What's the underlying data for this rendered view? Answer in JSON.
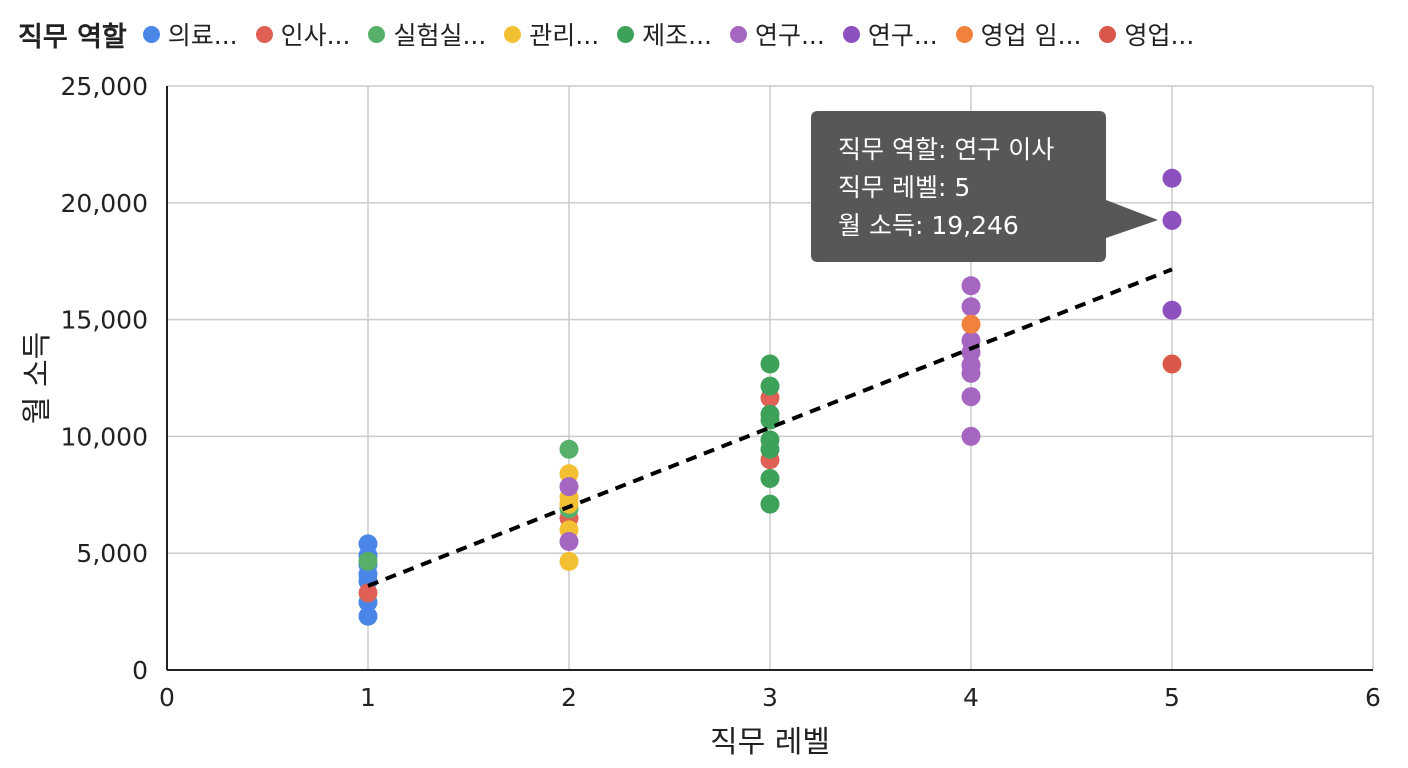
{
  "legend": {
    "title": "직무 역할",
    "items": [
      {
        "label": "의료...",
        "color": "#4a86e8"
      },
      {
        "label": "인사...",
        "color": "#e06055"
      },
      {
        "label": "실험실...",
        "color": "#57b06a"
      },
      {
        "label": "관리...",
        "color": "#f3bf33"
      },
      {
        "label": "제조...",
        "color": "#3ea15a"
      },
      {
        "label": "연구...",
        "color": "#a566c2"
      },
      {
        "label": "연구...",
        "color": "#8e4fbf"
      },
      {
        "label": "영업 임...",
        "color": "#f0823e"
      },
      {
        "label": "영업...",
        "color": "#d9574b"
      }
    ]
  },
  "tooltip": {
    "line1": "직무 역할: 연구 이사",
    "line2": "직무 레벨: 5",
    "line3": "월 소득: 19,246"
  },
  "chart_data": {
    "type": "scatter",
    "xlabel": "직무 레벨",
    "ylabel": "월 소득",
    "xlim": [
      0,
      6
    ],
    "ylim": [
      0,
      25000
    ],
    "x_ticks": [
      "0",
      "1",
      "2",
      "3",
      "4",
      "5",
      "6"
    ],
    "y_ticks": [
      "0",
      "5,000",
      "10,000",
      "15,000",
      "20,000",
      "25,000"
    ],
    "grid": true,
    "legend_position": "top",
    "trendline": {
      "style": "dashed",
      "color": "#000000",
      "from": [
        1,
        3600
      ],
      "to": [
        5,
        17150
      ]
    },
    "series": [
      {
        "name": "의료...",
        "color": "#4a86e8",
        "points": [
          [
            1,
            5400
          ],
          [
            1,
            4900
          ],
          [
            1,
            4500
          ],
          [
            1,
            4100
          ],
          [
            1,
            3800
          ],
          [
            1,
            2900
          ],
          [
            1,
            2300
          ]
        ]
      },
      {
        "name": "인사...",
        "color": "#e06055",
        "points": [
          [
            1,
            3300
          ],
          [
            2,
            6500
          ],
          [
            3,
            11650
          ],
          [
            3,
            9000
          ]
        ]
      },
      {
        "name": "실험실...",
        "color": "#57b06a",
        "points": [
          [
            1,
            4650
          ],
          [
            2,
            9450
          ],
          [
            2,
            6900
          ]
        ]
      },
      {
        "name": "관리...",
        "color": "#f3bf33",
        "points": [
          [
            2,
            8400
          ],
          [
            2,
            7400
          ],
          [
            2,
            7100
          ],
          [
            2,
            6000
          ],
          [
            2,
            4650
          ]
        ]
      },
      {
        "name": "제조...",
        "color": "#3ea15a",
        "points": [
          [
            3,
            13100
          ],
          [
            3,
            12150
          ],
          [
            3,
            10950
          ],
          [
            3,
            10700
          ],
          [
            3,
            9850
          ],
          [
            3,
            9450
          ],
          [
            3,
            8200
          ],
          [
            3,
            7100
          ]
        ]
      },
      {
        "name": "연구...",
        "color": "#a566c2",
        "points": [
          [
            2,
            7850
          ],
          [
            2,
            5500
          ],
          [
            4,
            16450
          ],
          [
            4,
            15550
          ],
          [
            4,
            14100
          ],
          [
            4,
            13600
          ],
          [
            4,
            13050
          ],
          [
            4,
            12700
          ],
          [
            4,
            11700
          ],
          [
            4,
            10000
          ]
        ]
      },
      {
        "name": "연구...",
        "color": "#8e4fbf",
        "points": [
          [
            5,
            21050
          ],
          [
            5,
            19246
          ],
          [
            5,
            15400
          ]
        ]
      },
      {
        "name": "영업 임...",
        "color": "#f0823e",
        "points": [
          [
            4,
            14800
          ]
        ]
      },
      {
        "name": "영업...",
        "color": "#d9574b",
        "points": [
          [
            5,
            13100
          ]
        ]
      }
    ]
  }
}
